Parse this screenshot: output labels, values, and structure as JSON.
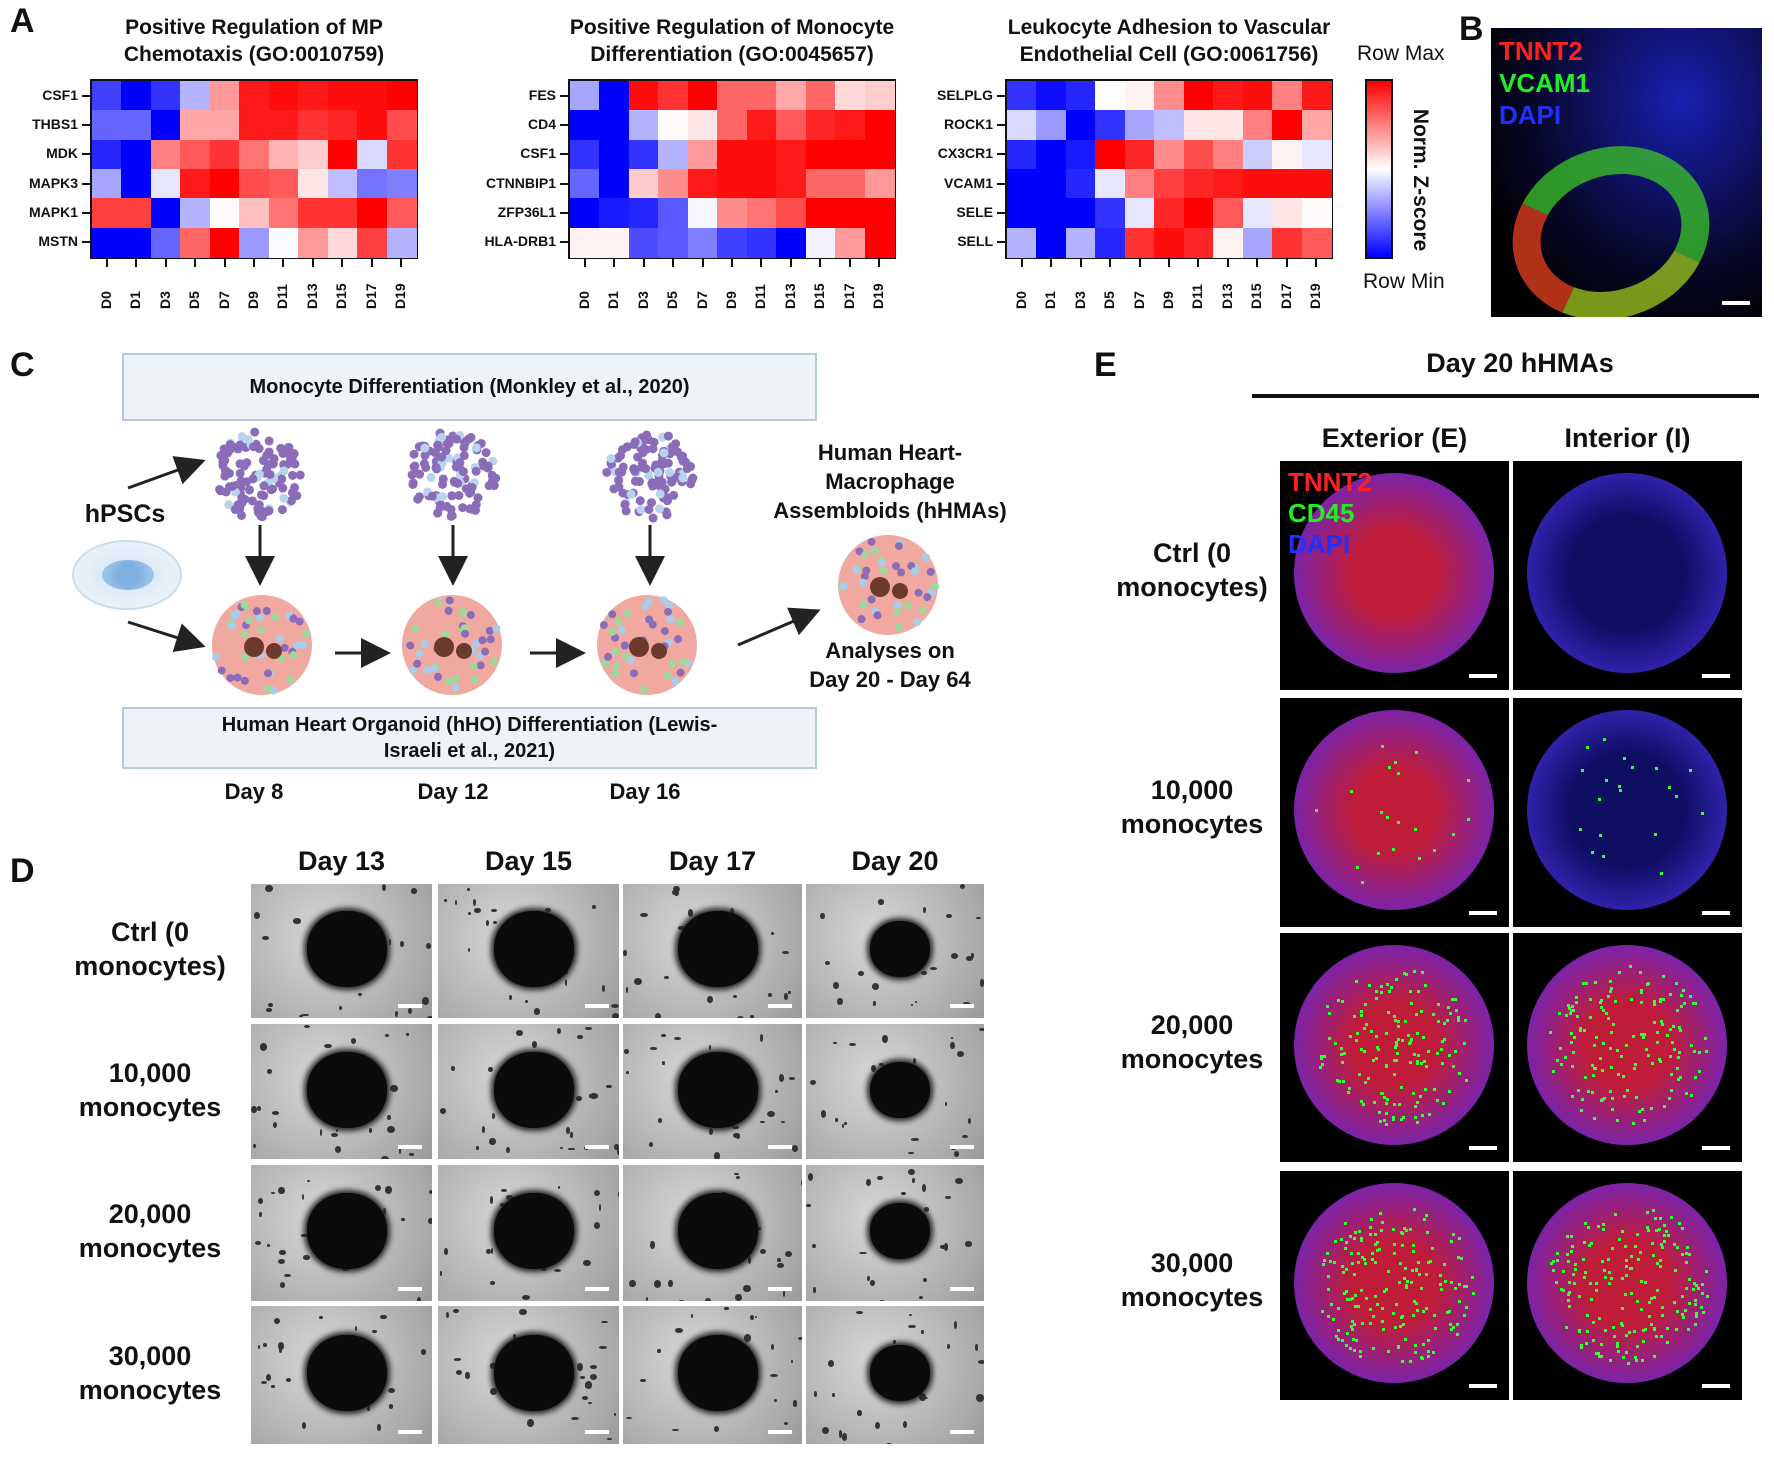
{
  "panels": {
    "A": "A",
    "B": "B",
    "C": "C",
    "D": "D",
    "E": "E"
  },
  "chart_data": [
    {
      "type": "heatmap",
      "title": "Positive Regulation of MP Chemotaxis (GO:0010759)",
      "title_lines": [
        "Positive Regulation of MP",
        "Chemotaxis (GO:0010759)"
      ],
      "rows": [
        "CSF1",
        "THBS1",
        "MDK",
        "MAPK3",
        "MAPK1",
        "MSTN"
      ],
      "columns": [
        "D0",
        "D1",
        "D3",
        "D5",
        "D7",
        "D9",
        "D11",
        "D13",
        "D15",
        "D17",
        "D19"
      ],
      "values": [
        [
          -0.75,
          -1,
          -0.8,
          -0.3,
          0.4,
          0.9,
          0.95,
          0.9,
          0.95,
          0.95,
          1
        ],
        [
          -0.6,
          -0.6,
          -1,
          0.35,
          0.35,
          0.9,
          0.9,
          0.8,
          0.85,
          0.95,
          0.7
        ],
        [
          -0.85,
          -1,
          0.5,
          0.65,
          0.8,
          0.55,
          0.3,
          0.2,
          1,
          -0.15,
          0.8
        ],
        [
          -0.35,
          -1,
          -0.1,
          0.9,
          1,
          0.7,
          0.65,
          0.1,
          -0.25,
          -0.55,
          -0.5
        ],
        [
          0.75,
          0.75,
          -1,
          -0.3,
          0.02,
          0.25,
          0.55,
          0.8,
          0.8,
          1,
          0.65
        ],
        [
          -1,
          -1,
          -0.6,
          0.6,
          1,
          -0.4,
          -0.02,
          0.4,
          0.15,
          0.75,
          -0.3
        ]
      ]
    },
    {
      "type": "heatmap",
      "title": "Positive Regulation of Monocyte Differentiation (GO:0045657)",
      "title_lines": [
        "Positive Regulation of Monocyte",
        "Differentiation (GO:0045657)"
      ],
      "rows": [
        "FES",
        "CD4",
        "CSF1",
        "CTNNBIP1",
        "ZFP36L1",
        "HLA-DRB1"
      ],
      "columns": [
        "D0",
        "D1",
        "D3",
        "D5",
        "D7",
        "D9",
        "D11",
        "D13",
        "D15",
        "D17",
        "D19"
      ],
      "values": [
        [
          -0.35,
          -1,
          0.95,
          0.8,
          1,
          0.6,
          0.6,
          0.35,
          0.6,
          0.15,
          0.2
        ],
        [
          -1,
          -1,
          -0.3,
          0.02,
          0.1,
          0.6,
          0.9,
          0.65,
          0.85,
          0.9,
          1
        ],
        [
          -0.8,
          -1,
          -0.8,
          -0.3,
          0.4,
          0.95,
          0.95,
          0.9,
          1,
          1,
          1
        ],
        [
          -0.6,
          -1,
          0.2,
          0.45,
          0.9,
          0.95,
          0.95,
          0.9,
          0.6,
          0.6,
          0.4
        ],
        [
          -1,
          -0.9,
          -0.85,
          -0.65,
          -0.03,
          0.45,
          0.55,
          0.7,
          1,
          1,
          1
        ],
        [
          0.05,
          0.05,
          -0.7,
          -0.65,
          -0.5,
          -0.75,
          -0.8,
          -1,
          -0.05,
          0.4,
          1
        ]
      ]
    },
    {
      "type": "heatmap",
      "title": "Leukocyte Adhesion to Vascular Endothelial Cell (GO:0061756)",
      "title_lines": [
        "Leukocyte Adhesion to Vascular",
        "Endothelial Cell (GO:0061756)"
      ],
      "rows": [
        "SELPLG",
        "ROCK1",
        "CX3CR1",
        "VCAM1",
        "SELE",
        "SELL"
      ],
      "columns": [
        "D0",
        "D1",
        "D3",
        "D5",
        "D7",
        "D9",
        "D11",
        "D13",
        "D15",
        "D17",
        "D19"
      ],
      "values": [
        [
          -0.8,
          -0.95,
          -0.85,
          0.01,
          0.05,
          0.45,
          1,
          0.9,
          0.95,
          0.5,
          0.9
        ],
        [
          -0.15,
          -0.4,
          -1,
          -0.8,
          -0.35,
          -0.25,
          0.1,
          0.1,
          0.5,
          1,
          0.35
        ],
        [
          -0.85,
          -1,
          -0.9,
          1,
          0.85,
          0.45,
          0.7,
          0.5,
          -0.2,
          0.05,
          -0.1
        ],
        [
          -1,
          -1,
          -0.85,
          -0.1,
          0.5,
          0.75,
          0.85,
          0.9,
          0.95,
          0.95,
          0.95
        ],
        [
          -1,
          -1,
          -1,
          -0.8,
          -0.1,
          0.85,
          1,
          0.65,
          -0.1,
          0.1,
          0.02
        ],
        [
          -0.3,
          -1,
          -0.3,
          -0.85,
          0.8,
          0.95,
          0.85,
          0.05,
          -0.35,
          0.8,
          0.65
        ]
      ]
    }
  ],
  "colorbar": {
    "max_label": "Row Max",
    "min_label": "Row Min",
    "title": "Norm. Z-score",
    "range": [
      -1,
      1
    ],
    "colors": {
      "min": "#0000ff",
      "mid": "#ffffff",
      "max": "#ff0000"
    }
  },
  "panelB": {
    "channels": [
      {
        "name": "TNNT2",
        "color": "#ff2020"
      },
      {
        "name": "VCAM1",
        "color": "#22ee22"
      },
      {
        "name": "DAPI",
        "color": "#2030ff"
      }
    ]
  },
  "panelC": {
    "top_box": "Monocyte Differentiation (Monkley et al., 2020)",
    "bottom_box_lines": [
      "Human Heart Organoid (hHO) Differentiation (Lewis-",
      "Israeli et al., 2021)"
    ],
    "source": "hPSCs",
    "days": [
      "Day 8",
      "Day 12",
      "Day 16"
    ],
    "product_lines": [
      "Human Heart-",
      "Macrophage",
      "Assembloids (hHMAs)"
    ],
    "analysis_lines": [
      "Analyses on",
      "Day 20 - Day 64"
    ]
  },
  "panelD": {
    "columns": [
      "Day 13",
      "Day 15",
      "Day 17",
      "Day 20"
    ],
    "rows": [
      [
        "Ctrl (0",
        "monocytes)"
      ],
      [
        "10,000",
        "monocytes"
      ],
      [
        "20,000",
        "monocytes"
      ],
      [
        "30,000",
        "monocytes"
      ]
    ]
  },
  "panelE": {
    "title": "Day 20 hHMAs",
    "columns": [
      "Exterior (E)",
      "Interior (I)"
    ],
    "rows": [
      [
        "Ctrl (0",
        "monocytes)"
      ],
      [
        "10,000",
        "monocytes"
      ],
      [
        "20,000",
        "monocytes"
      ],
      [
        "30,000",
        "monocytes"
      ]
    ],
    "channels": [
      {
        "name": "TNNT2",
        "color": "#ff2020"
      },
      {
        "name": "CD45",
        "color": "#22ee22"
      },
      {
        "name": "DAPI",
        "color": "#2030ff"
      }
    ]
  }
}
